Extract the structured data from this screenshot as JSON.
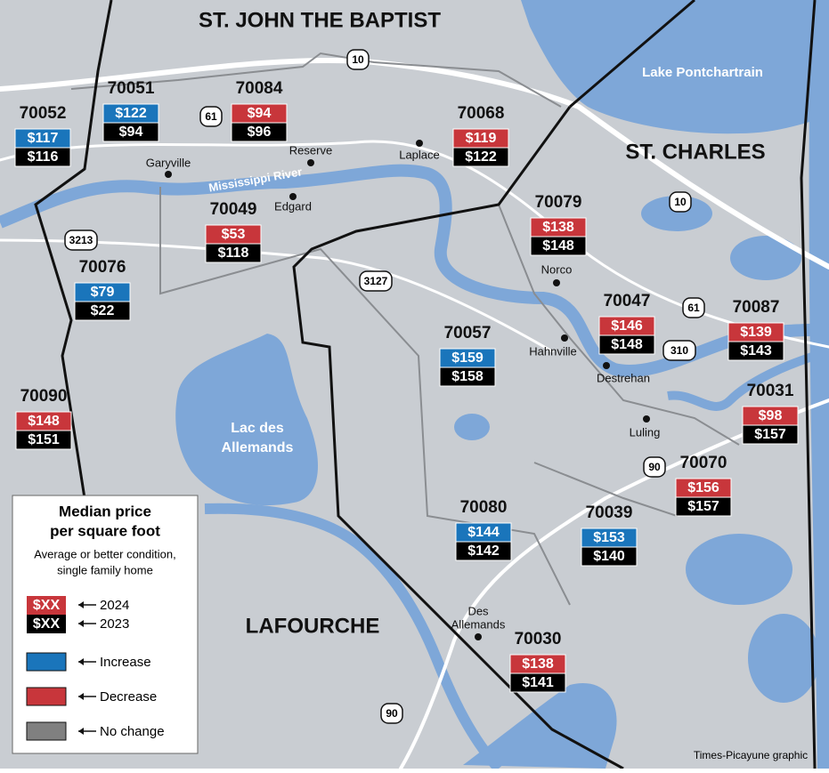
{
  "parishes": [
    "ST. JOHN THE BAPTIST",
    "ST. CHARLES",
    "LAFOURCHE"
  ],
  "water_labels": {
    "lake_pontchartrain": "Lake Pontchartrain",
    "lac_des_allemands": [
      "Lac des",
      "Allemands"
    ],
    "river": "Mississippi River"
  },
  "places": [
    {
      "name": [
        "Garyville"
      ]
    },
    {
      "name": [
        "Reserve"
      ]
    },
    {
      "name": [
        "Edgard"
      ]
    },
    {
      "name": [
        "Laplace"
      ]
    },
    {
      "name": [
        "Norco"
      ]
    },
    {
      "name": [
        "Hahnville"
      ]
    },
    {
      "name": [
        "Destrehan"
      ]
    },
    {
      "name": [
        "Luling"
      ]
    },
    {
      "name": [
        "Des",
        "Allemands"
      ]
    }
  ],
  "highways": [
    "10",
    "61",
    "10",
    "61",
    "310",
    "3213",
    "3127",
    "90",
    "90"
  ],
  "zip_codes": [
    {
      "zip": "70052",
      "price_2024": "$117",
      "price_2023": "$116",
      "change": "Increase"
    },
    {
      "zip": "70051",
      "price_2024": "$122",
      "price_2023": "$94",
      "change": "Increase"
    },
    {
      "zip": "70084",
      "price_2024": "$94",
      "price_2023": "$96",
      "change": "Decrease"
    },
    {
      "zip": "70068",
      "price_2024": "$119",
      "price_2023": "$122",
      "change": "Decrease"
    },
    {
      "zip": "70079",
      "price_2024": "$138",
      "price_2023": "$148",
      "change": "Decrease"
    },
    {
      "zip": "70049",
      "price_2024": "$53",
      "price_2023": "$118",
      "change": "Decrease"
    },
    {
      "zip": "70076",
      "price_2024": "$79",
      "price_2023": "$22",
      "change": "Increase"
    },
    {
      "zip": "70057",
      "price_2024": "$159",
      "price_2023": "$158",
      "change": "Increase"
    },
    {
      "zip": "70047",
      "price_2024": "$146",
      "price_2023": "$148",
      "change": "Decrease"
    },
    {
      "zip": "70087",
      "price_2024": "$139",
      "price_2023": "$143",
      "change": "Decrease"
    },
    {
      "zip": "70031",
      "price_2024": "$98",
      "price_2023": "$157",
      "change": "Decrease"
    },
    {
      "zip": "70090",
      "price_2024": "$148",
      "price_2023": "$151",
      "change": "Decrease"
    },
    {
      "zip": "70070",
      "price_2024": "$156",
      "price_2023": "$157",
      "change": "Decrease"
    },
    {
      "zip": "70080",
      "price_2024": "$144",
      "price_2023": "$142",
      "change": "Increase"
    },
    {
      "zip": "70039",
      "price_2024": "$153",
      "price_2023": "$140",
      "change": "Increase"
    },
    {
      "zip": "70030",
      "price_2024": "$138",
      "price_2023": "$141",
      "change": "Decrease"
    }
  ],
  "legend": {
    "title": [
      "Median price",
      "per square foot"
    ],
    "subtitle": [
      "Average or better condition,",
      "single family home"
    ],
    "years": [
      {
        "sample": "$XX",
        "label": "2024",
        "color": "#c8363b"
      },
      {
        "sample": "$XX",
        "label": "2023",
        "color": "#000000"
      }
    ],
    "items": [
      {
        "label": "Increase",
        "color": "#1a75bb"
      },
      {
        "label": "Decrease",
        "color": "#c8363b"
      },
      {
        "label": "No change",
        "color": "#808080"
      }
    ]
  },
  "credit": "Times-Picayune graphic"
}
